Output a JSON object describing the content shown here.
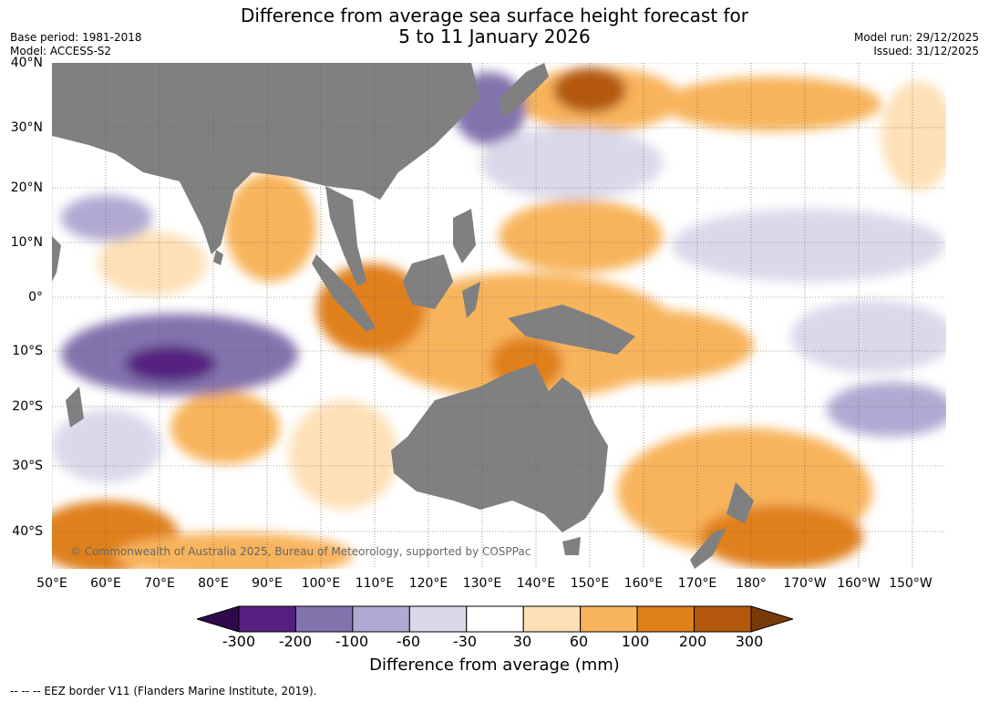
{
  "header": {
    "title_line1": "Difference from average sea surface height forecast for",
    "title_line2": "5 to 11 January 2026",
    "base_period": "Base period: 1981-2018",
    "model": "Model: ACCESS-S2",
    "model_run": "Model run: 29/12/2025",
    "issued": "Issued: 31/12/2025"
  },
  "map": {
    "lat_labels": [
      "40°N",
      "30°N",
      "20°N",
      "10°N",
      "0°",
      "10°S",
      "20°S",
      "30°S",
      "40°S"
    ],
    "lon_labels": [
      "50°E",
      "60°E",
      "70°E",
      "80°E",
      "90°E",
      "100°E",
      "110°E",
      "120°E",
      "130°E",
      "140°E",
      "150°E",
      "160°E",
      "170°E",
      "180°",
      "170°W",
      "160°W",
      "150°W"
    ],
    "copyright": "© Commonwealth of Australia 2025, Bureau of Meteorology, supported by COSPPac",
    "land_color": "#808080"
  },
  "colorbar": {
    "ticks": [
      "-300",
      "-200",
      "-100",
      "-60",
      "-30",
      "30",
      "60",
      "100",
      "200",
      "300"
    ],
    "colors": [
      "#2e0a4a",
      "#55207f",
      "#8373ad",
      "#b1a9d2",
      "#d9d9ea",
      "#ffffff",
      "#fde0b6",
      "#f8b45c",
      "#e0801a",
      "#b3580c",
      "#7a3a08"
    ],
    "label": "Difference from average (mm)"
  },
  "footer": {
    "legend_text": "--  --  -- EEZ border V11 (Flanders Marine Institute, 2019)."
  }
}
